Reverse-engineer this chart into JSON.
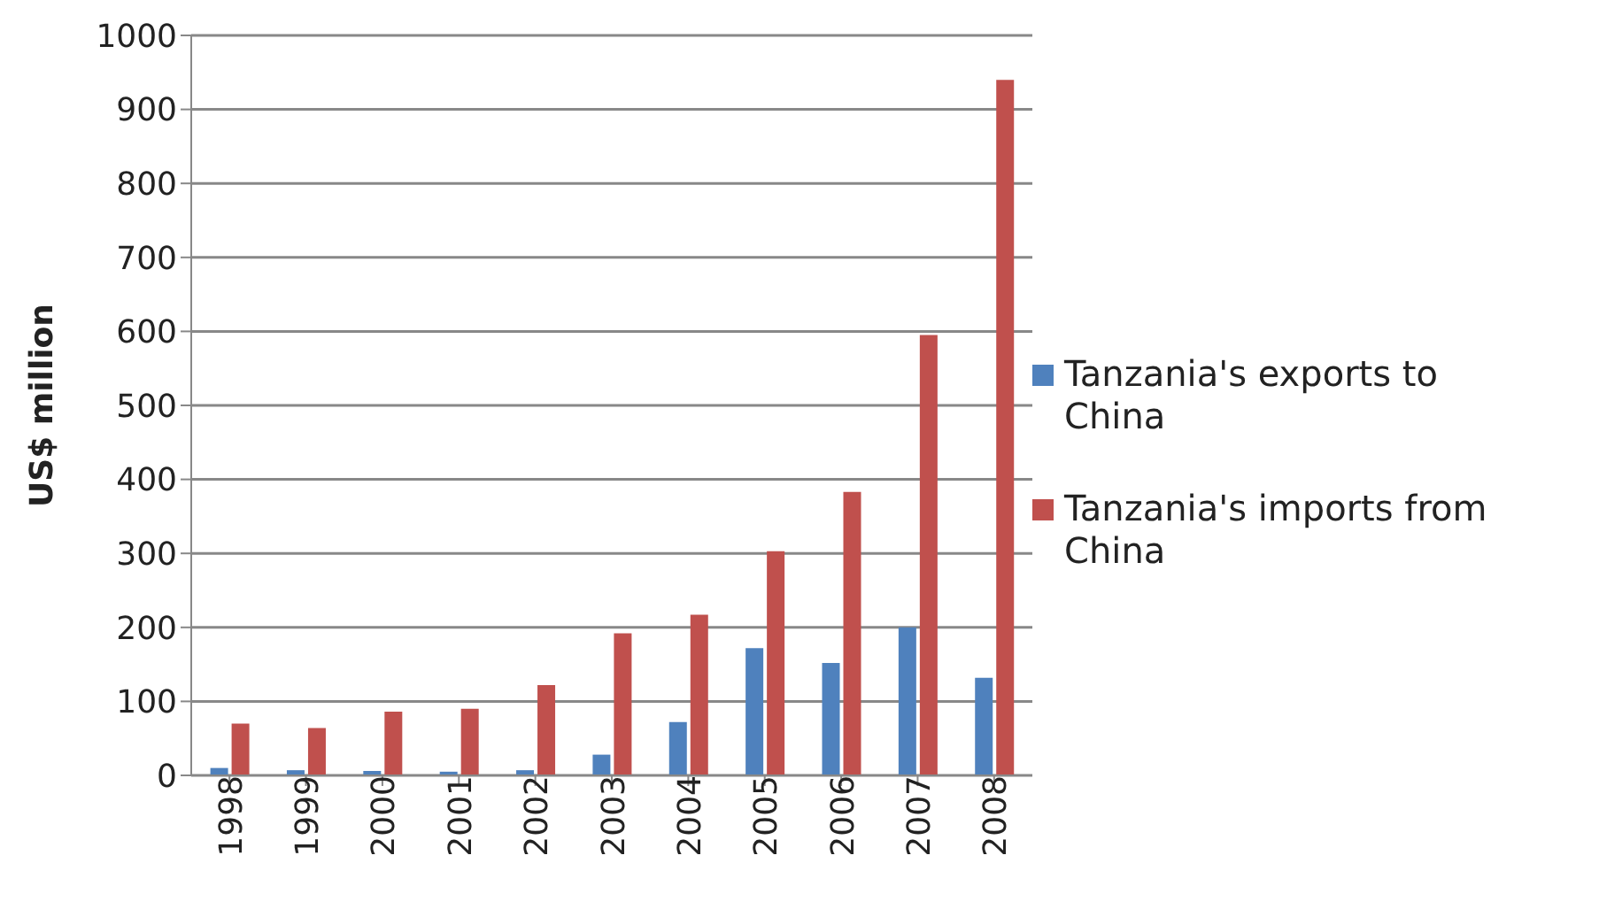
{
  "chart_data": {
    "type": "bar",
    "ylabel": "US$ million",
    "categories": [
      "1998",
      "1999",
      "2000",
      "2001",
      "2002",
      "2003",
      "2004",
      "2005",
      "2006",
      "2007",
      "2008"
    ],
    "series": [
      {
        "name": "Tanzania's exports to China",
        "color": "#4f81bd",
        "values": [
          10,
          7,
          6,
          5,
          7,
          28,
          72,
          172,
          152,
          200,
          132
        ]
      },
      {
        "name": "Tanzania's imports from China",
        "color": "#c0504d",
        "values": [
          70,
          64,
          86,
          90,
          122,
          192,
          217,
          303,
          383,
          595,
          940
        ]
      }
    ],
    "ylim": [
      0,
      1000
    ],
    "yticks": [
      0,
      100,
      200,
      300,
      400,
      500,
      600,
      700,
      800,
      900,
      1000
    ],
    "grid": "y",
    "legend": "right"
  }
}
